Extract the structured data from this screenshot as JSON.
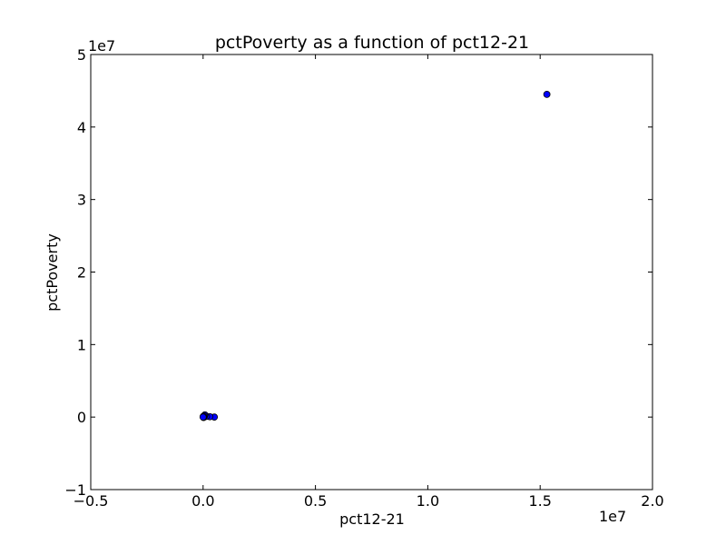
{
  "chart_data": {
    "type": "scatter",
    "title": "pctPoverty as a function of pct12-21",
    "xlabel": "pct12-21",
    "ylabel": "pctPoverty",
    "xlim": [
      -5000000,
      20000000
    ],
    "ylim": [
      -10000000,
      50000000
    ],
    "x_ticks": [
      -5000000,
      0,
      5000000,
      10000000,
      15000000,
      20000000
    ],
    "x_tick_labels": [
      "−0.5",
      "0.0",
      "0.5",
      "1.0",
      "1.5",
      "2.0"
    ],
    "y_ticks": [
      -10000000,
      0,
      10000000,
      20000000,
      30000000,
      40000000,
      50000000
    ],
    "y_tick_labels": [
      "−1",
      "0",
      "1",
      "2",
      "3",
      "4",
      "5"
    ],
    "x_offset_label": "1e7",
    "y_offset_label": "1e7",
    "grid": false,
    "marker_color": "#0000ff",
    "points": [
      {
        "x": 15300000,
        "y": 44500000
      },
      {
        "x": 500000,
        "y": 0
      },
      {
        "x": 300000,
        "y": 50000
      },
      {
        "x": 150000,
        "y": 100000
      },
      {
        "x": 80000,
        "y": 300000
      },
      {
        "x": 60000,
        "y": 150000
      },
      {
        "x": 40000,
        "y": 0
      },
      {
        "x": 20000,
        "y": -50000
      },
      {
        "x": 10000,
        "y": 100000
      },
      {
        "x": 0,
        "y": 0
      }
    ]
  }
}
